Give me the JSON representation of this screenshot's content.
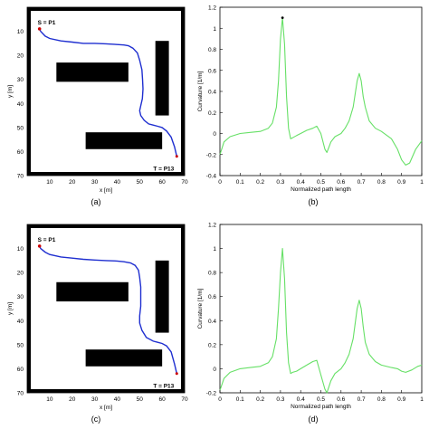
{
  "panels": [
    {
      "caption": "(a)",
      "chart_data": {
        "type": "line",
        "xlabel": "x [m]",
        "ylabel": "y [m]",
        "xlim": [
          0,
          70
        ],
        "ylim": [
          70,
          0
        ],
        "xticks": [
          10,
          20,
          30,
          40,
          50,
          60,
          70
        ],
        "yticks": [
          10,
          20,
          30,
          40,
          50,
          60,
          70
        ],
        "grid": false,
        "obstacles": [
          {
            "x": [
              13,
              45
            ],
            "y": [
              23,
              31
            ]
          },
          {
            "x": [
              57,
              63
            ],
            "y": [
              14,
              45
            ]
          },
          {
            "x": [
              26,
              60
            ],
            "y": [
              52,
              59
            ]
          }
        ],
        "series": [
          {
            "x": [
              5.5,
              6,
              8,
              10,
              15,
              20,
              25,
              30,
              35,
              40,
              43,
              45,
              47,
              49,
              50,
              51,
              51.3,
              51.5,
              51.2,
              50.5,
              50,
              50.5,
              52,
              54,
              56,
              58,
              60,
              62,
              64,
              65.5,
              66.5
            ],
            "y": [
              9,
              10,
              12,
              13,
              14,
              14.5,
              15,
              15,
              15.2,
              15.5,
              15.7,
              16,
              17,
              19,
              22,
              26,
              30,
              34,
              38,
              41,
              43,
              45,
              47,
              48.5,
              49,
              49.5,
              50,
              51.5,
              54,
              58,
              62
            ]
          }
        ],
        "annotations": [
          {
            "text": "S = P1",
            "x": 5.5,
            "y": 9
          },
          {
            "text": "T = P13",
            "x": 66.5,
            "y": 62
          }
        ]
      }
    },
    {
      "caption": "(b)",
      "chart_data": {
        "type": "line",
        "xlabel": "Normalized path length",
        "ylabel": "Curvature [1/m]",
        "xlim": [
          0,
          1
        ],
        "ylim": [
          -0.4,
          1.2
        ],
        "xticks": [
          "0",
          "0.1",
          "0.2",
          "0.3",
          "0.4",
          "0.5",
          "0.6",
          "0.7",
          "0.8",
          "0.9",
          "1"
        ],
        "yticks": [
          "-0.4",
          "-0.2",
          "0",
          "0.2",
          "0.4",
          "0.6",
          "0.8",
          "1",
          "1.2"
        ],
        "grid": false,
        "series": [
          {
            "x": [
              0,
              0.02,
              0.05,
              0.1,
              0.15,
              0.2,
              0.24,
              0.26,
              0.28,
              0.29,
              0.3,
              0.31,
              0.32,
              0.33,
              0.34,
              0.35,
              0.36,
              0.38,
              0.4,
              0.43,
              0.46,
              0.48,
              0.5,
              0.52,
              0.53,
              0.55,
              0.57,
              0.6,
              0.62,
              0.64,
              0.66,
              0.68,
              0.69,
              0.7,
              0.71,
              0.72,
              0.74,
              0.77,
              0.8,
              0.85,
              0.88,
              0.9,
              0.92,
              0.94,
              0.97,
              1
            ],
            "y": [
              -0.2,
              -0.08,
              -0.03,
              0,
              0.01,
              0.02,
              0.05,
              0.1,
              0.25,
              0.5,
              0.9,
              1.1,
              0.85,
              0.35,
              0.05,
              -0.05,
              -0.04,
              -0.02,
              0,
              0.03,
              0.05,
              0.07,
              0,
              -0.15,
              -0.18,
              -0.08,
              -0.03,
              0,
              0.05,
              0.12,
              0.25,
              0.5,
              0.57,
              0.5,
              0.35,
              0.25,
              0.12,
              0.05,
              0.02,
              -0.05,
              -0.15,
              -0.25,
              -0.3,
              -0.28,
              -0.15,
              -0.07
            ]
          }
        ],
        "markers": [
          {
            "x": 0.31,
            "y": 1.1
          }
        ]
      }
    },
    {
      "caption": "(c)",
      "chart_data": {
        "type": "line",
        "xlabel": "x [m]",
        "ylabel": "y [m]",
        "xlim": [
          0,
          70
        ],
        "ylim": [
          70,
          0
        ],
        "xticks": [
          10,
          20,
          30,
          40,
          50,
          60,
          70
        ],
        "yticks": [
          10,
          20,
          30,
          40,
          50,
          60,
          70
        ],
        "grid": false,
        "obstacles": [
          {
            "x": [
              13,
              45
            ],
            "y": [
              24,
              32
            ]
          },
          {
            "x": [
              57,
              63
            ],
            "y": [
              15,
              45
            ]
          },
          {
            "x": [
              26,
              60
            ],
            "y": [
              52,
              59
            ]
          }
        ],
        "series": [
          {
            "x": [
              5.5,
              6,
              8,
              10,
              15,
              20,
              25,
              30,
              35,
              40,
              43,
              46,
              48,
              49.5,
              50,
              50.5,
              50.5,
              50.5,
              50,
              50,
              51,
              53,
              56,
              58,
              60,
              62,
              64,
              65.5,
              66.5
            ],
            "y": [
              9,
              10,
              11.5,
              12.5,
              13.5,
              14,
              14.5,
              14.8,
              15,
              15.2,
              15.5,
              16,
              17,
              19,
              22,
              26,
              30,
              34,
              38,
              41,
              44,
              47,
              48.5,
              49,
              49.5,
              50.5,
              53,
              58,
              62
            ]
          }
        ],
        "annotations": [
          {
            "text": "S = P1",
            "x": 5.5,
            "y": 9
          },
          {
            "text": "T = P13",
            "x": 66.5,
            "y": 62
          }
        ]
      }
    },
    {
      "caption": "(d)",
      "chart_data": {
        "type": "line",
        "xlabel": "Normalized path length",
        "ylabel": "Curvature [1/m]",
        "xlim": [
          0,
          1
        ],
        "ylim": [
          -0.2,
          1.2
        ],
        "xticks": [
          "0",
          "0.1",
          "0.2",
          "0.3",
          "0.4",
          "0.5",
          "0.6",
          "0.7",
          "0.8",
          "0.9",
          "1"
        ],
        "yticks": [
          "-0.2",
          "0",
          "0.2",
          "0.4",
          "0.6",
          "0.8",
          "1",
          "1.2"
        ],
        "grid": false,
        "series": [
          {
            "x": [
              0,
              0.02,
              0.05,
              0.1,
              0.15,
              0.2,
              0.24,
              0.26,
              0.28,
              0.29,
              0.3,
              0.31,
              0.32,
              0.33,
              0.34,
              0.35,
              0.36,
              0.38,
              0.4,
              0.43,
              0.46,
              0.48,
              0.5,
              0.52,
              0.53,
              0.55,
              0.57,
              0.6,
              0.62,
              0.64,
              0.66,
              0.68,
              0.69,
              0.7,
              0.71,
              0.72,
              0.74,
              0.77,
              0.8,
              0.85,
              0.88,
              0.9,
              0.92,
              0.95,
              0.98,
              1
            ],
            "y": [
              -0.18,
              -0.08,
              -0.03,
              0,
              0.01,
              0.02,
              0.05,
              0.1,
              0.25,
              0.5,
              0.8,
              1.0,
              0.75,
              0.3,
              0.05,
              -0.04,
              -0.03,
              -0.02,
              0,
              0.03,
              0.06,
              0.07,
              -0.05,
              -0.17,
              -0.2,
              -0.1,
              -0.04,
              0,
              0.05,
              0.12,
              0.25,
              0.5,
              0.57,
              0.5,
              0.35,
              0.22,
              0.12,
              0.06,
              0.03,
              0.01,
              0,
              -0.02,
              -0.03,
              -0.01,
              0.02,
              0.03
            ]
          }
        ]
      }
    }
  ],
  "colors": {
    "path": "#1f2fd0",
    "curvature": "#66e066",
    "obstacle": "#000000",
    "start_marker": "#cc0000",
    "axis": "#000000"
  }
}
